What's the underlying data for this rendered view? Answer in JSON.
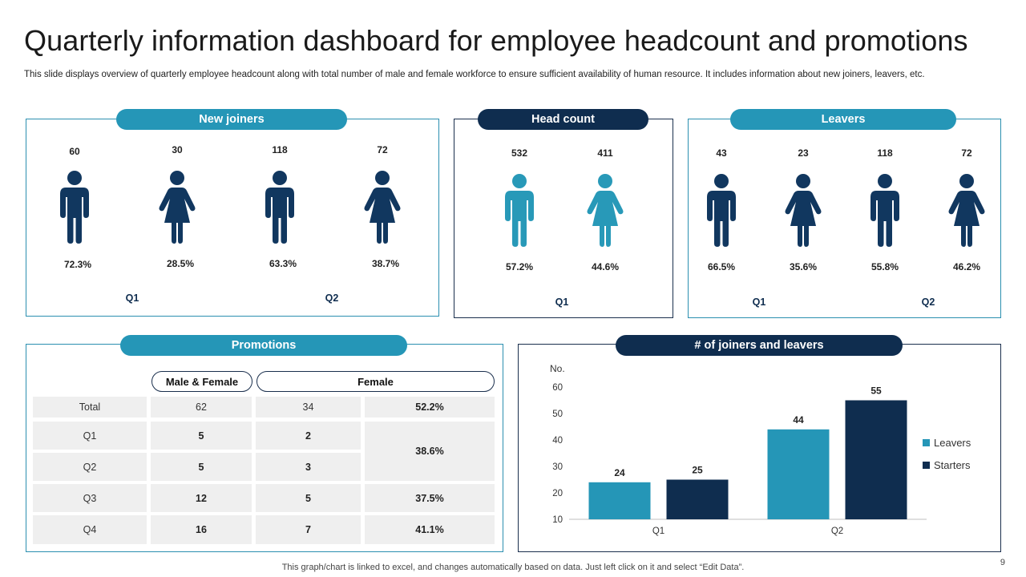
{
  "title": "Quarterly information dashboard for employee headcount and promotions",
  "subtitle": "This slide displays overview of quarterly employee headcount along with total number of male and female workforce to ensure sufficient availability of human resource. It includes information about new joiners, leavers, etc.",
  "colors": {
    "teal": "#2596b7",
    "navy": "#0f2d4f",
    "figure_dark": "#11375f",
    "figure_light": "#2899b8"
  },
  "new_joiners": {
    "label": "New joiners",
    "items": [
      {
        "value": "60",
        "percent": "72.3%",
        "icon": "male-person-icon"
      },
      {
        "value": "30",
        "percent": "28.5%",
        "icon": "female-person-icon"
      },
      {
        "value": "118",
        "percent": "63.3%",
        "icon": "male-person-icon"
      },
      {
        "value": "72",
        "percent": "38.7%",
        "icon": "female-person-icon"
      }
    ],
    "quarters": [
      "Q1",
      "Q2"
    ]
  },
  "head_count": {
    "label": "Head count",
    "items": [
      {
        "value": "532",
        "percent": "57.2%",
        "icon": "male-person-icon"
      },
      {
        "value": "411",
        "percent": "44.6%",
        "icon": "female-person-icon"
      }
    ],
    "quarters": [
      "Q1"
    ]
  },
  "leavers": {
    "label": "Leavers",
    "items": [
      {
        "value": "43",
        "percent": "66.5%",
        "icon": "male-person-icon"
      },
      {
        "value": "23",
        "percent": "35.6%",
        "icon": "female-person-icon"
      },
      {
        "value": "118",
        "percent": "55.8%",
        "icon": "male-person-icon"
      },
      {
        "value": "72",
        "percent": "46.2%",
        "icon": "female-person-icon"
      }
    ],
    "quarters": [
      "Q1",
      "Q2"
    ]
  },
  "promotions": {
    "label": "Promotions",
    "headers": [
      "Male & Female",
      "Female"
    ],
    "rows": [
      {
        "label": "Total",
        "mf": "62",
        "female": "34"
      },
      {
        "label": "Q1",
        "mf": "5",
        "female": "2"
      },
      {
        "label": "Q2",
        "mf": "5",
        "female": "3"
      },
      {
        "label": "Q3",
        "mf": "12",
        "female": "5"
      },
      {
        "label": "Q4",
        "mf": "16",
        "female": "7"
      }
    ],
    "percents": [
      "52.2%",
      "38.6%",
      "37.5%",
      "41.1%"
    ]
  },
  "chart_data": {
    "type": "bar",
    "title": "# of joiners and leavers",
    "ylabel": "No.",
    "categories": [
      "Q1",
      "Q2"
    ],
    "series": [
      {
        "name": "Leavers",
        "values": [
          24,
          44
        ],
        "color": "#2596b7"
      },
      {
        "name": "Starters",
        "values": [
          25,
          55
        ],
        "color": "#0f2d4f"
      }
    ],
    "ylim": [
      10,
      60
    ],
    "yticks": [
      10,
      20,
      30,
      40,
      50,
      60
    ],
    "grid": false,
    "legend": "right"
  },
  "footer": "This graph/chart is linked to excel,  and changes automatically based on data. Just left click on it and select “Edit Data”.",
  "page_number": "9"
}
